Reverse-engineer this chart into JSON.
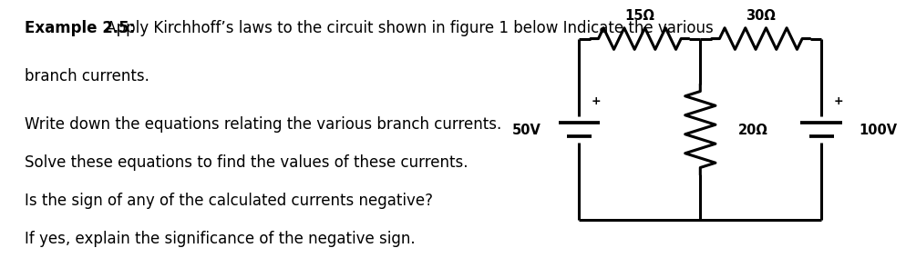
{
  "title_bold": "Example 2.5:",
  "title_rest": " Apply Kirchhoff’s laws to the circuit shown in figure 1 below Indicate the various",
  "line2": "branch currents.",
  "lines": [
    "Write down the equations relating the various branch currents.",
    "Solve these equations to find the values of these currents.",
    "Is the sign of any of the calculated currents negative?",
    "If yes, explain the significance of the negative sign."
  ],
  "background": "#ffffff",
  "text_color": "#000000",
  "font_size": 12.0,
  "circuit": {
    "res15_label": "15Ω",
    "res30_label": "30Ω",
    "res20_label": "20Ω",
    "v50_label": "50V",
    "v100_label": "100V",
    "line_color": "#000000",
    "line_width": 2.2
  }
}
